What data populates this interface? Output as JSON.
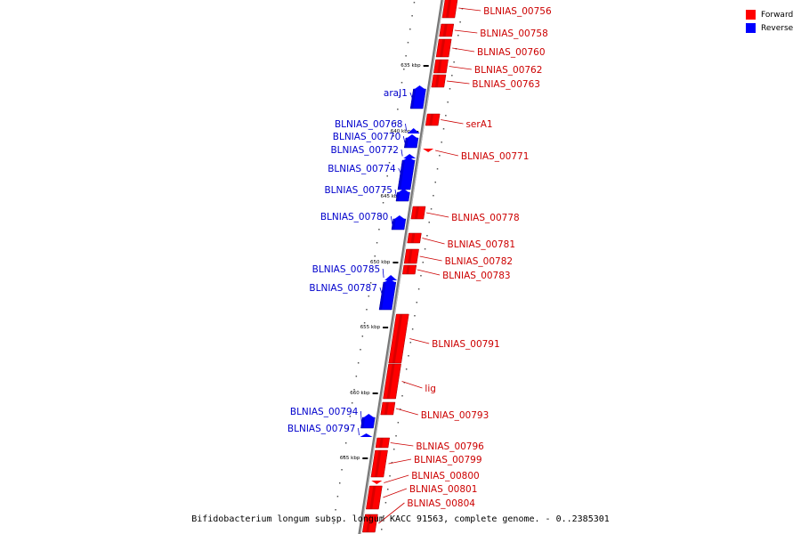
{
  "legend": {
    "forward_label": "Forward",
    "reverse_label": "Reverse",
    "forward_color": "#ff0000",
    "reverse_color": "#0000ff"
  },
  "caption": "Bifidobacterium longum subsp. longum KACC 91563, complete genome. - 0..2385301",
  "tick_labels": [
    "635 kbp",
    "640 kbp",
    "645 kbp",
    "650 kbp",
    "655 kbp",
    "660 kbp",
    "665 kbp"
  ],
  "genes": {
    "forward": [
      "BLNIAS_00756",
      "BLNIAS_00758",
      "BLNIAS_00760",
      "BLNIAS_00762",
      "BLNIAS_00763",
      "serA1",
      "BLNIAS_00771",
      "BLNIAS_00778",
      "BLNIAS_00781",
      "BLNIAS_00782",
      "BLNIAS_00783",
      "BLNIAS_00791",
      "lig",
      "BLNIAS_00793",
      "BLNIAS_00796",
      "BLNIAS_00799",
      "BLNIAS_00800",
      "BLNIAS_00801",
      "BLNIAS_00804"
    ],
    "reverse": [
      "araJ1",
      "BLNIAS_00768",
      "BLNIAS_00770",
      "BLNIAS_00772",
      "BLNIAS_00774",
      "BLNIAS_00775",
      "BLNIAS_00780",
      "BLNIAS_00785",
      "BLNIAS_00787",
      "BLNIAS_00794",
      "BLNIAS_00797"
    ]
  }
}
